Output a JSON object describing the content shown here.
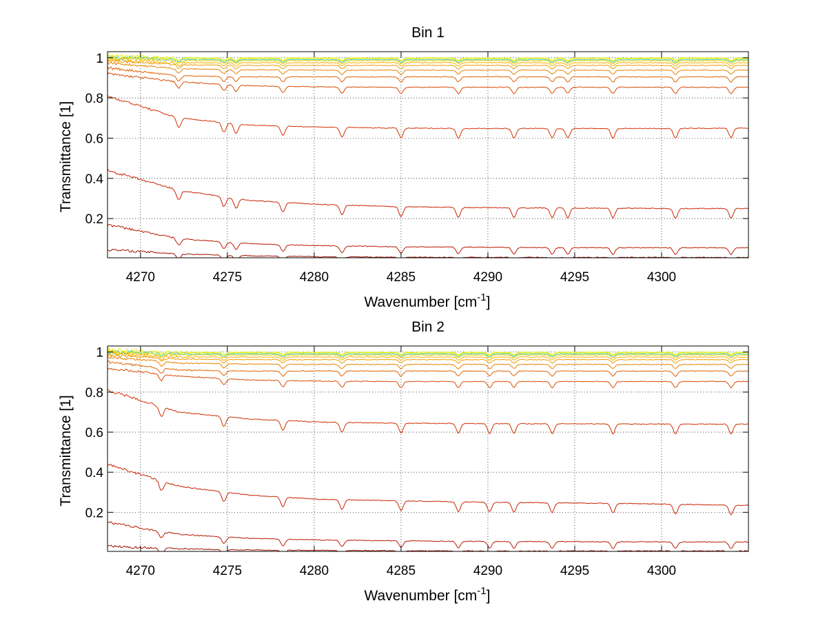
{
  "chart_data": [
    {
      "type": "line",
      "title": "Bin 1",
      "xlabel": "Wavenumber [cm",
      "xlabel_sup": "-1",
      "xlabel_end": "]",
      "ylabel": "Transmittance [1]",
      "xlim": [
        4268.1,
        4305.0
      ],
      "ylim": [
        0.005,
        1.03
      ],
      "xticks": [
        4270,
        4275,
        4280,
        4285,
        4290,
        4295,
        4300
      ],
      "yticks": [
        0.2,
        0.4,
        0.6,
        0.8,
        1
      ],
      "ytick_labels": [
        "0.2",
        "0.4",
        "0.6",
        "0.8",
        "1"
      ],
      "grid": true,
      "absorption_lines": [
        4272.2,
        4274.8,
        4275.5,
        4278.2,
        4281.6,
        4285.0,
        4288.3,
        4291.5,
        4293.7,
        4294.6,
        4297.2,
        4300.8,
        4304.0
      ],
      "series": [
        {
          "color": "#e8f020",
          "values": [
            1.01,
            0.999,
            0.999,
            0.999,
            0.999,
            0.999,
            0.999,
            0.999,
            0.999,
            0.999
          ]
        },
        {
          "color": "#d8e800",
          "values": [
            1.0,
            0.995,
            0.995,
            0.995,
            0.995,
            0.995,
            0.995,
            0.995,
            0.995,
            0.995
          ]
        },
        {
          "color": "#40d0e0",
          "values": [
            1.0,
            0.99,
            0.99,
            0.99,
            0.99,
            0.99,
            0.99,
            0.99,
            0.99,
            0.99
          ]
        },
        {
          "color": "#f0d000",
          "values": [
            1.0,
            0.985,
            0.985,
            0.985,
            0.985,
            0.985,
            0.985,
            0.985,
            0.985,
            0.985
          ]
        },
        {
          "color": "#f5b000",
          "values": [
            0.99,
            0.975,
            0.975,
            0.975,
            0.975,
            0.975,
            0.975,
            0.975,
            0.975,
            0.975
          ]
        },
        {
          "color": "#f09a00",
          "values": [
            0.985,
            0.965,
            0.962,
            0.962,
            0.962,
            0.962,
            0.962,
            0.962,
            0.962,
            0.962
          ]
        },
        {
          "color": "#e88000",
          "values": [
            0.975,
            0.945,
            0.94,
            0.938,
            0.938,
            0.938,
            0.938,
            0.938,
            0.938,
            0.938
          ]
        },
        {
          "color": "#e06000",
          "values": [
            0.95,
            0.91,
            0.905,
            0.905,
            0.905,
            0.905,
            0.905,
            0.905,
            0.905,
            0.905
          ]
        },
        {
          "color": "#d84a00",
          "values": [
            0.92,
            0.88,
            0.86,
            0.855,
            0.853,
            0.853,
            0.853,
            0.853,
            0.853,
            0.853
          ]
        },
        {
          "color": "#d03000",
          "values": [
            0.81,
            0.7,
            0.665,
            0.655,
            0.65,
            0.648,
            0.648,
            0.648,
            0.648,
            0.65
          ]
        },
        {
          "color": "#c82000",
          "values": [
            0.44,
            0.34,
            0.29,
            0.27,
            0.26,
            0.255,
            0.253,
            0.252,
            0.25,
            0.25
          ]
        },
        {
          "color": "#b81800",
          "values": [
            0.17,
            0.1,
            0.075,
            0.065,
            0.06,
            0.058,
            0.056,
            0.055,
            0.055,
            0.055
          ]
        },
        {
          "color": "#a01000",
          "values": [
            0.045,
            0.025,
            0.015,
            0.01,
            0.008,
            0.007,
            0.007,
            0.007,
            0.007,
            0.007
          ]
        }
      ]
    },
    {
      "type": "line",
      "title": "Bin 2",
      "xlabel": "Wavenumber [cm",
      "xlabel_sup": "-1",
      "xlabel_end": "]",
      "ylabel": "Transmittance [1]",
      "xlim": [
        4268.1,
        4305.0
      ],
      "ylim": [
        0.005,
        1.03
      ],
      "xticks": [
        4270,
        4275,
        4280,
        4285,
        4290,
        4295,
        4300
      ],
      "yticks": [
        0.2,
        0.4,
        0.6,
        0.8,
        1
      ],
      "ytick_labels": [
        "0.2",
        "0.4",
        "0.6",
        "0.8",
        "1"
      ],
      "grid": true,
      "absorption_lines": [
        4271.2,
        4274.8,
        4278.2,
        4281.6,
        4285.0,
        4288.3,
        4290.1,
        4291.5,
        4293.7,
        4297.2,
        4300.8,
        4304.0
      ],
      "series": [
        {
          "color": "#e8f020",
          "values": [
            1.01,
            0.999,
            0.999,
            0.999,
            0.999,
            0.999,
            0.999,
            0.999,
            0.999,
            0.999
          ]
        },
        {
          "color": "#d8e800",
          "values": [
            1.0,
            0.995,
            0.995,
            0.995,
            0.995,
            0.995,
            0.995,
            0.995,
            0.995,
            0.995
          ]
        },
        {
          "color": "#40d0e0",
          "values": [
            1.0,
            0.99,
            0.99,
            0.99,
            0.99,
            0.99,
            0.99,
            0.99,
            0.99,
            0.99
          ]
        },
        {
          "color": "#f0d000",
          "values": [
            1.0,
            0.985,
            0.985,
            0.985,
            0.985,
            0.985,
            0.985,
            0.985,
            0.985,
            0.985
          ]
        },
        {
          "color": "#f5b000",
          "values": [
            0.99,
            0.975,
            0.975,
            0.975,
            0.975,
            0.975,
            0.975,
            0.975,
            0.975,
            0.975
          ]
        },
        {
          "color": "#f09a00",
          "values": [
            0.985,
            0.965,
            0.962,
            0.962,
            0.962,
            0.962,
            0.962,
            0.962,
            0.962,
            0.962
          ]
        },
        {
          "color": "#e88000",
          "values": [
            0.975,
            0.945,
            0.94,
            0.938,
            0.938,
            0.938,
            0.938,
            0.938,
            0.938,
            0.938
          ]
        },
        {
          "color": "#e06000",
          "values": [
            0.95,
            0.91,
            0.905,
            0.905,
            0.905,
            0.905,
            0.905,
            0.905,
            0.905,
            0.905
          ]
        },
        {
          "color": "#d84a00",
          "values": [
            0.92,
            0.88,
            0.86,
            0.855,
            0.853,
            0.853,
            0.853,
            0.853,
            0.853,
            0.853
          ]
        },
        {
          "color": "#d03000",
          "values": [
            0.81,
            0.7,
            0.665,
            0.65,
            0.645,
            0.643,
            0.642,
            0.641,
            0.64,
            0.64
          ]
        },
        {
          "color": "#c82000",
          "values": [
            0.44,
            0.33,
            0.285,
            0.265,
            0.258,
            0.252,
            0.248,
            0.245,
            0.24,
            0.235
          ]
        },
        {
          "color": "#b81800",
          "values": [
            0.15,
            0.09,
            0.07,
            0.062,
            0.058,
            0.055,
            0.054,
            0.053,
            0.052,
            0.052
          ]
        },
        {
          "color": "#a01000",
          "values": [
            0.03,
            0.018,
            0.012,
            0.01,
            0.008,
            0.007,
            0.007,
            0.007,
            0.007,
            0.007
          ]
        }
      ]
    }
  ]
}
